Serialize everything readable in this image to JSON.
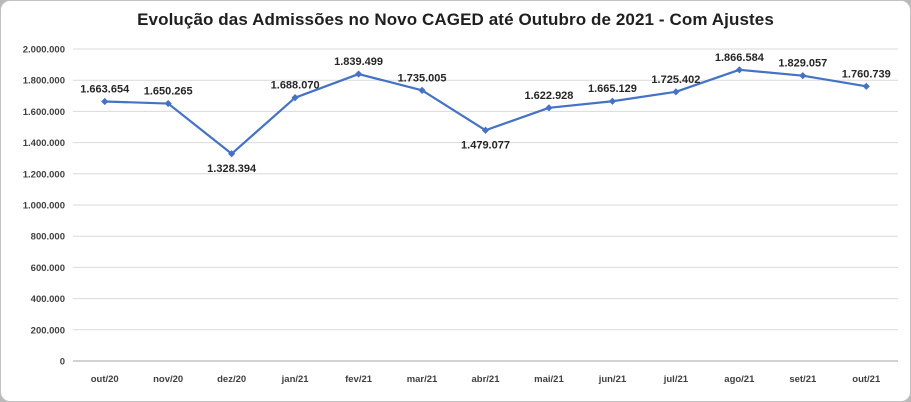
{
  "chart_data": {
    "type": "line",
    "title": "Evolução das Admissões no Novo CAGED até Outubro de 2021 - Com Ajustes",
    "categories": [
      "out/20",
      "nov/20",
      "dez/20",
      "jan/21",
      "fev/21",
      "mar/21",
      "abr/21",
      "mai/21",
      "jun/21",
      "jul/21",
      "ago/21",
      "set/21",
      "out/21"
    ],
    "values": [
      1663654,
      1650265,
      1328394,
      1688070,
      1839499,
      1735005,
      1479077,
      1622928,
      1665129,
      1725402,
      1866584,
      1829057,
      1760739
    ],
    "value_labels": [
      "1.663.654",
      "1.650.265",
      "1.328.394",
      "1.688.070",
      "1.839.499",
      "1.735.005",
      "1.479.077",
      "1.622.928",
      "1.665.129",
      "1.725.402",
      "1.866.584",
      "1.829.057",
      "1.760.739"
    ],
    "label_positions": [
      "above",
      "above",
      "below",
      "above",
      "above",
      "above",
      "below",
      "above",
      "above",
      "above",
      "above",
      "above",
      "above"
    ],
    "xlabel": "",
    "ylabel": "",
    "ylim": [
      0,
      2000000
    ],
    "ytick_step": 200000,
    "ytick_labels": [
      "0",
      "200.000",
      "400.000",
      "600.000",
      "800.000",
      "1.000.000",
      "1.200.000",
      "1.400.000",
      "1.600.000",
      "1.800.000",
      "2.000.000"
    ],
    "grid": true,
    "legend_position": "none",
    "colors": {
      "line": "#4472C4",
      "marker": "#4472C4",
      "data_label": "#262626",
      "tick_label": "#404040",
      "gridline": "#d9d9d9",
      "axis_line": "#a6a6a6"
    }
  }
}
